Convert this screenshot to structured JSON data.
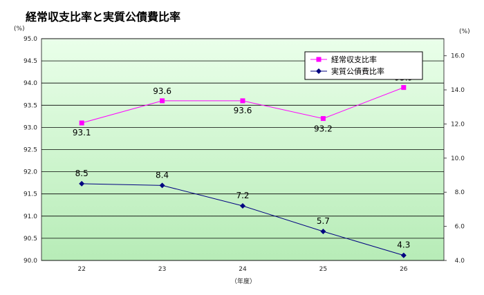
{
  "chart_data": {
    "type": "line",
    "title": "経常収支比率と実質公債費比率",
    "categories": [
      "22",
      "23",
      "24",
      "25",
      "26"
    ],
    "xlabel": "（年度）",
    "y_left": {
      "unit": "(%)",
      "ylim": [
        90.0,
        95.0
      ],
      "ticks": [
        "90.0",
        "90.5",
        "91.0",
        "91.5",
        "92.0",
        "92.5",
        "93.0",
        "93.5",
        "94.0",
        "94.5",
        "95.0"
      ]
    },
    "y_right": {
      "unit": "(%)",
      "ylim": [
        4.0,
        17.0
      ],
      "ticks": [
        "4.0",
        "6.0",
        "8.0",
        "10.0",
        "12.0",
        "14.0",
        "16.0"
      ]
    },
    "series": [
      {
        "name": "経常収支比率",
        "axis": "left",
        "values": [
          93.1,
          93.6,
          93.6,
          93.2,
          93.9
        ],
        "labels": [
          "93.1",
          "93.6",
          "93.6",
          "93.2",
          "93.9"
        ],
        "color": "#ff00ff",
        "marker": "square"
      },
      {
        "name": "実質公債費比率",
        "axis": "right",
        "values": [
          8.5,
          8.4,
          7.2,
          5.7,
          4.3
        ],
        "labels": [
          "8.5",
          "8.4",
          "7.2",
          "5.7",
          "4.3"
        ],
        "color": "#000080",
        "marker": "diamond"
      }
    ],
    "grid": true,
    "legend": "top-right"
  }
}
